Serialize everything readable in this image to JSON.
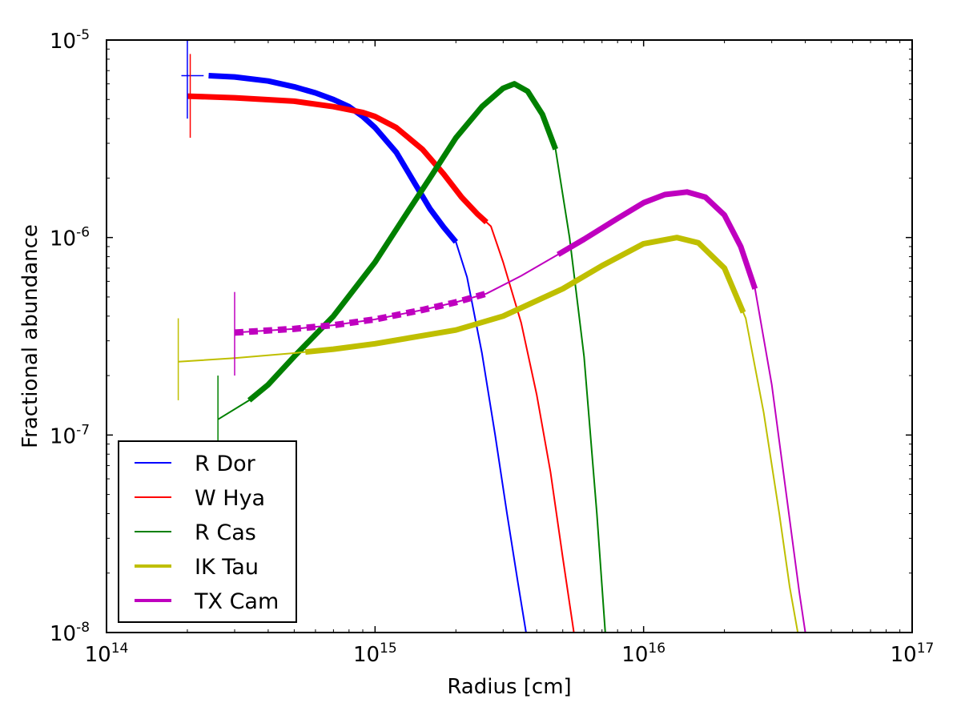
{
  "chart_data": {
    "type": "line",
    "xscale": "log",
    "yscale": "log",
    "xlim": [
      100000000000000.0,
      1e+17
    ],
    "ylim": [
      1e-08,
      1e-05
    ],
    "xlabel": "Radius [cm]",
    "ylabel": "Fractional abundance",
    "x_ticks": [
      {
        "value": 100000000000000.0,
        "base": "10",
        "exp": "14"
      },
      {
        "value": 1000000000000000.0,
        "base": "10",
        "exp": "15"
      },
      {
        "value": 1e+16,
        "base": "10",
        "exp": "16"
      },
      {
        "value": 1e+17,
        "base": "10",
        "exp": "17"
      }
    ],
    "y_ticks": [
      {
        "value": 1e-08,
        "base": "10",
        "exp": "-8"
      },
      {
        "value": 1e-07,
        "base": "10",
        "exp": "-7"
      },
      {
        "value": 1e-06,
        "base": "10",
        "exp": "-6"
      },
      {
        "value": 1e-05,
        "base": "10",
        "exp": "-5"
      }
    ],
    "legend_position": "bottom-left",
    "series": [
      {
        "name": "R Dor",
        "color": "#0000ff",
        "x": [
          240000000000000.0,
          300000000000000.0,
          400000000000000.0,
          500000000000000.0,
          600000000000000.0,
          700000000000000.0,
          800000000000000.0,
          900000000000000.0,
          1000000000000000.0,
          1200000000000000.0,
          1400000000000000.0,
          1600000000000000.0,
          1800000000000000.0,
          2000000000000000.0,
          2200000000000000.0,
          2500000000000000.0,
          2800000000000000.0,
          3100000000000000.0,
          3400000000000000.0,
          3650000000000000.0
        ],
        "y": [
          6.6e-06,
          6.5e-06,
          6.2e-06,
          5.8e-06,
          5.4e-06,
          5e-06,
          4.6e-06,
          4.1e-06,
          3.6e-06,
          2.7e-06,
          1.9e-06,
          1.4e-06,
          1.13e-06,
          9.5e-07,
          6.3e-07,
          2.6e-07,
          1e-07,
          4e-08,
          1.8e-08,
          1e-08
        ],
        "thick_range": [
          240000000000000.0,
          2000000000000000.0
        ],
        "error_bar": {
          "x": 200000000000000.0,
          "y": 6.6e-06,
          "ylow": 4e-06,
          "yhigh": 1e-05,
          "xlow": 190000000000000.0,
          "xhigh": 230000000000000.0
        }
      },
      {
        "name": "W Hya",
        "color": "#ff0000",
        "x": [
          200000000000000.0,
          300000000000000.0,
          500000000000000.0,
          700000000000000.0,
          900000000000000.0,
          1000000000000000.0,
          1200000000000000.0,
          1500000000000000.0,
          1800000000000000.0,
          2100000000000000.0,
          2400000000000000.0,
          2700000000000000.0,
          3000000000000000.0,
          3500000000000000.0,
          4000000000000000.0,
          4500000000000000.0,
          5000000000000000.0,
          5500000000000000.0
        ],
        "y": [
          5.2e-06,
          5.1e-06,
          4.9e-06,
          4.6e-06,
          4.3e-06,
          4.1e-06,
          3.6e-06,
          2.8e-06,
          2.1e-06,
          1.6e-06,
          1.32e-06,
          1.14e-06,
          7.5e-07,
          3.7e-07,
          1.6e-07,
          6.5e-08,
          2.4e-08,
          1e-08
        ],
        "thick_range": [
          200000000000000.0,
          2600000000000000.0
        ],
        "error_bar": {
          "x": 205000000000000.0,
          "y": 5.2e-06,
          "ylow": 3.2e-06,
          "yhigh": 8.5e-06,
          "xlow": 205000000000000.0,
          "xhigh": 205000000000000.0
        }
      },
      {
        "name": "R Cas",
        "color": "#008000",
        "x": [
          260000000000000.0,
          340000000000000.0,
          400000000000000.0,
          500000000000000.0,
          700000000000000.0,
          1000000000000000.0,
          1300000000000000.0,
          1600000000000000.0,
          2000000000000000.0,
          2500000000000000.0,
          3000000000000000.0,
          3300000000000000.0,
          3700000000000000.0,
          4200000000000000.0,
          4700000000000000.0,
          5300000000000000.0,
          6000000000000000.0,
          6700000000000000.0,
          7200000000000000.0
        ],
        "y": [
          1.2e-07,
          1.5e-07,
          1.8e-07,
          2.5e-07,
          4e-07,
          7.5e-07,
          1.3e-06,
          2e-06,
          3.2e-06,
          4.6e-06,
          5.7e-06,
          6e-06,
          5.5e-06,
          4.2e-06,
          2.8e-06,
          1e-06,
          2.5e-07,
          4e-08,
          1e-08
        ],
        "thick_range": [
          340000000000000.0,
          4700000000000000.0
        ],
        "error_bar": {
          "x": 260000000000000.0,
          "y": 1.2e-07,
          "ylow": 8e-08,
          "yhigh": 2e-07,
          "xlow": 260000000000000.0,
          "xhigh": 260000000000000.0
        }
      },
      {
        "name": "IK Tau",
        "color": "#bfbf00",
        "x": [
          185000000000000.0,
          300000000000000.0,
          500000000000000.0,
          700000000000000.0,
          1000000000000000.0,
          2000000000000000.0,
          3000000000000000.0,
          5000000000000000.0,
          7000000000000000.0,
          1e+16,
          1.33e+16,
          1.6e+16,
          2e+16,
          2.4e+16,
          2.8e+16,
          3.2e+16,
          3.5e+16,
          3.75e+16
        ],
        "y": [
          2.35e-07,
          2.45e-07,
          2.6e-07,
          2.72e-07,
          2.9e-07,
          3.4e-07,
          4e-07,
          5.5e-07,
          7.2e-07,
          9.3e-07,
          1e-06,
          9.4e-07,
          7e-07,
          3.9e-07,
          1.3e-07,
          4e-08,
          1.7e-08,
          1e-08
        ],
        "thick_range": [
          550000000000000.0,
          2.35e+16
        ],
        "error_bar": {
          "x": 185000000000000.0,
          "y": 2.35e-07,
          "ylow": 1.5e-07,
          "yhigh": 3.9e-07,
          "xlow": 185000000000000.0,
          "xhigh": 185000000000000.0
        }
      },
      {
        "name": "TX Cam",
        "color": "#bf00bf",
        "x": [
          300000000000000.0,
          500000000000000.0,
          700000000000000.0,
          1000000000000000.0,
          1500000000000000.0,
          2000000000000000.0,
          2600000000000000.0,
          3500000000000000.0,
          4800000000000000.0,
          6000000000000000.0,
          8000000000000000.0,
          1e+16,
          1.2e+16,
          1.45e+16,
          1.7e+16,
          2e+16,
          2.3e+16,
          2.6e+16,
          3e+16,
          3.4e+16,
          3.8e+16,
          4e+16
        ],
        "y": [
          3.3e-07,
          3.45e-07,
          3.6e-07,
          3.85e-07,
          4.3e-07,
          4.7e-07,
          5.2e-07,
          6.4e-07,
          8.2e-07,
          9.8e-07,
          1.25e-06,
          1.5e-06,
          1.65e-06,
          1.7e-06,
          1.6e-06,
          1.3e-06,
          9e-07,
          5.5e-07,
          1.8e-07,
          5e-08,
          1.6e-08,
          1e-08
        ],
        "thick_range": [
          4800000000000000.0,
          2.6e+16
        ],
        "dashed_range": [
          300000000000000.0,
          2600000000000000.0
        ],
        "error_bar": {
          "x": 300000000000000.0,
          "y": 3.3e-07,
          "ylow": 2e-07,
          "yhigh": 5.3e-07,
          "xlow": 300000000000000.0,
          "xhigh": 300000000000000.0
        }
      }
    ]
  }
}
